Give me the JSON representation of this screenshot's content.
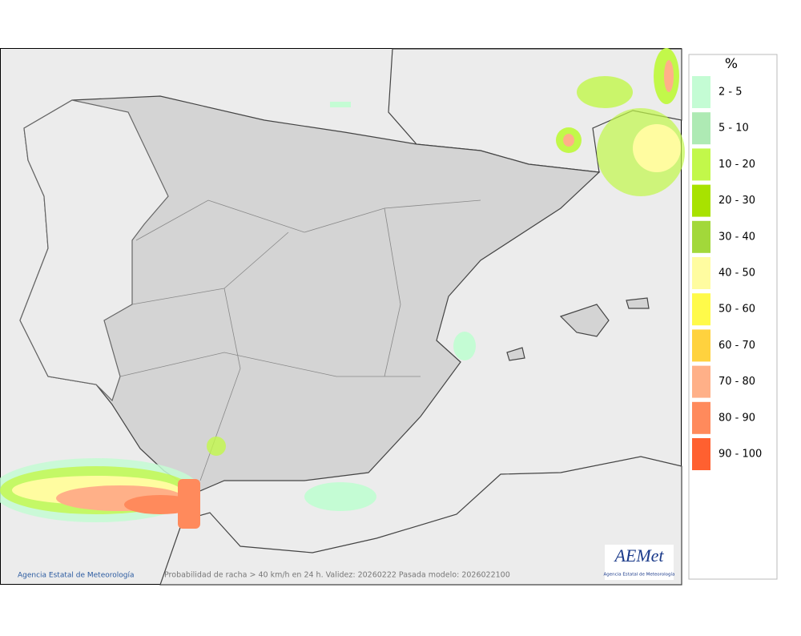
{
  "legend": {
    "title": "%",
    "items": [
      {
        "label": "2 - 5",
        "color": "#c4fcd4"
      },
      {
        "label": "5 - 10",
        "color": "#aeeab4"
      },
      {
        "label": "10 - 20",
        "color": "#c2f84a"
      },
      {
        "label": "20 - 30",
        "color": "#a8e200"
      },
      {
        "label": "30 - 40",
        "color": "#a2d83a"
      },
      {
        "label": "40 - 50",
        "color": "#fffca0"
      },
      {
        "label": "50 - 60",
        "color": "#fffa4a"
      },
      {
        "label": "60 - 70",
        "color": "#ffd23e"
      },
      {
        "label": "70 - 80",
        "color": "#ffb088"
      },
      {
        "label": "80 - 90",
        "color": "#ff8a5c"
      },
      {
        "label": "90 - 100",
        "color": "#ff6030"
      }
    ]
  },
  "footer": {
    "copyright": "Agencia Estatal de Meteorología",
    "caption": "Probabilidad de racha > 40 km/h en 24 h. Validez: 20260222 Pasada modelo: 2026022100"
  },
  "logo": {
    "name": "AEMet",
    "subtitle": "Agencia Estatal de Meteorología"
  }
}
